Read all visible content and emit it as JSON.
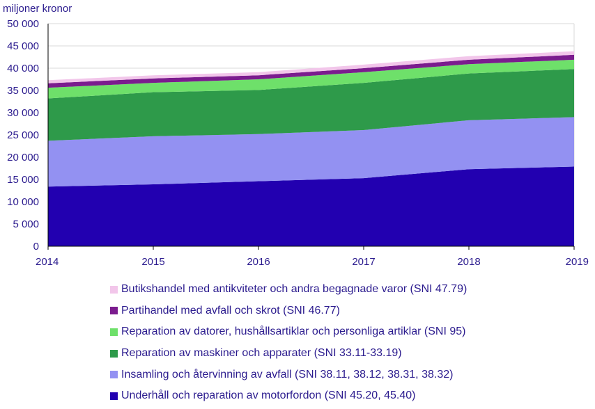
{
  "chart_data": {
    "type": "area",
    "stacked": true,
    "ylabel": "miljoner kronor",
    "xlabel": "",
    "x": [
      2014,
      2015,
      2016,
      2017,
      2018,
      2019
    ],
    "x_tick_labels": [
      "2014",
      "2015",
      "2016",
      "2017",
      "2018",
      "2019"
    ],
    "ylim": [
      0,
      50000
    ],
    "y_ticks": [
      0,
      5000,
      10000,
      15000,
      20000,
      25000,
      30000,
      35000,
      40000,
      45000,
      50000
    ],
    "y_tick_labels": [
      "0",
      "5 000",
      "10 000",
      "15 000",
      "20 000",
      "25 000",
      "30 000",
      "35 000",
      "40 000",
      "45 000",
      "50 000"
    ],
    "grid": "horizontal",
    "legend_position": "bottom",
    "series": [
      {
        "name": "Underhåll och reparation av motorfordon (SNI 45.20, 45.40)",
        "color": "#2200b0",
        "values": [
          13400,
          13900,
          14600,
          15300,
          17300,
          17900
        ]
      },
      {
        "name": "Insamling och återvinning av avfall (SNI 38.11, 38.12, 38.31, 38.32)",
        "color": "#9391f2",
        "values": [
          10300,
          10800,
          10600,
          10800,
          11000,
          11100
        ]
      },
      {
        "name": "Reparation av maskiner och apparater (SNI 33.11-33.19)",
        "color": "#2e9a4a",
        "values": [
          9500,
          9900,
          9900,
          10600,
          10500,
          10800
        ]
      },
      {
        "name": "Reparation av datorer, hushållsartiklar och personliga artiklar (SNI 95)",
        "color": "#6ee06a",
        "values": [
          2400,
          2100,
          2400,
          2400,
          2100,
          2100
        ]
      },
      {
        "name": "Partihandel med avfall och skrot (SNI 46.77)",
        "color": "#7b1c8e",
        "values": [
          1000,
          1000,
          900,
          900,
          1000,
          1100
        ]
      },
      {
        "name": "Butikshandel med antikviteter och andra begagnade varor (SNI 47.79)",
        "color": "#f2c6ea",
        "values": [
          700,
          700,
          700,
          800,
          800,
          800
        ]
      }
    ],
    "legend_order": [
      5,
      4,
      3,
      2,
      1,
      0
    ]
  }
}
